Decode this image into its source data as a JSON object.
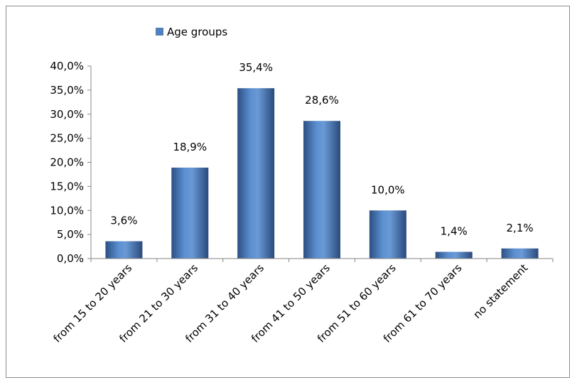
{
  "chart_data": {
    "type": "bar",
    "categories": [
      "from 15 to 20 years",
      "from 21 to 30 years",
      "from 31 to 40 years",
      "from 41 to 50 years",
      "from 51 to 60 years",
      "from 61 to 70 years",
      "no statement"
    ],
    "series": [
      {
        "name": "Age groups",
        "values": [
          3.6,
          18.9,
          35.4,
          28.6,
          10.0,
          1.4,
          2.1
        ],
        "labels": [
          "3,6%",
          "18,9%",
          "35,4%",
          "28,6%",
          "10,0%",
          "1,4%",
          "2,1%"
        ],
        "color": "#4f81bd"
      }
    ],
    "ylim": [
      0,
      40
    ],
    "yticks": [
      0,
      5,
      10,
      15,
      20,
      25,
      30,
      35,
      40
    ],
    "ytick_labels": [
      "0,0%",
      "5,0%",
      "10,0%",
      "15,0%",
      "20,0%",
      "25,0%",
      "30,0%",
      "35,0%",
      "40,0%"
    ],
    "grid": false,
    "legend_position": "top-left"
  }
}
